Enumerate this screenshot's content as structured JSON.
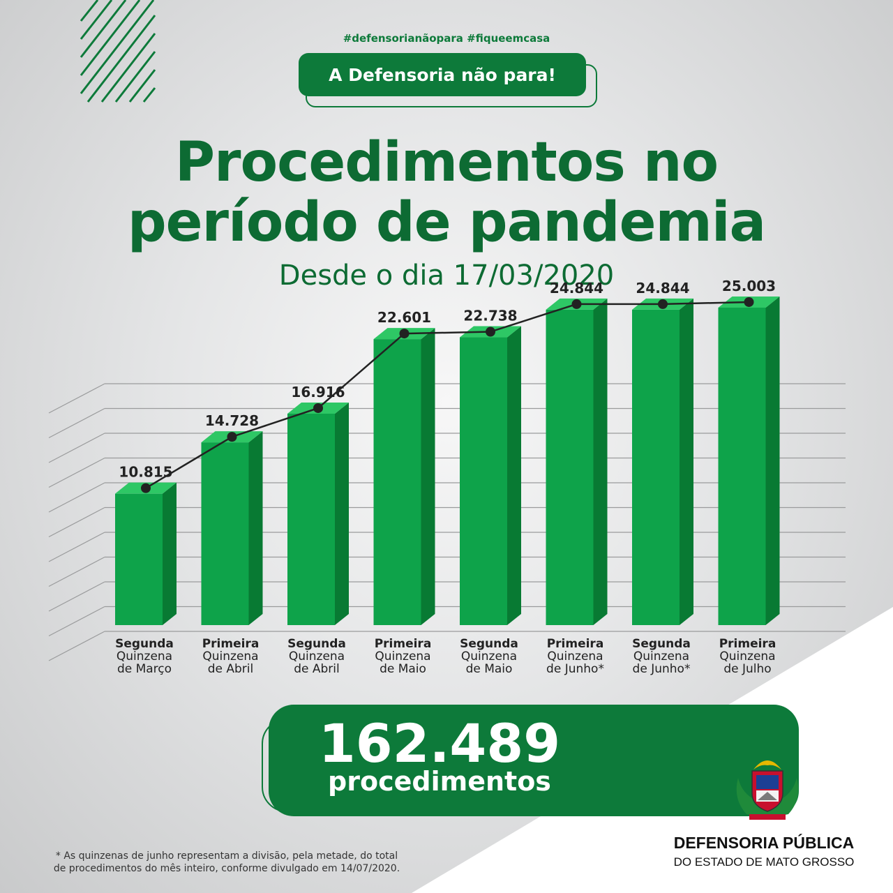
{
  "header": {
    "hashtags": "#defensorianãopara #fiqueemcasa",
    "pill": "A Defensoria não para!",
    "title_line1": "Procedimentos no",
    "title_line2": "período de pandemia",
    "subtitle": "Desde o dia 17/03/2020"
  },
  "chart_data": {
    "type": "bar",
    "categories": [
      [
        "Segunda",
        "Quinzena",
        "de Março"
      ],
      [
        "Primeira",
        "Quinzena",
        "de Abril"
      ],
      [
        "Segunda",
        "Quinzena",
        "de Abril"
      ],
      [
        "Primeira",
        "Quinzena",
        "de Maio"
      ],
      [
        "Segunda",
        "Quinzena",
        "de Maio"
      ],
      [
        "Primeira",
        "Quinzena",
        "de Junho*"
      ],
      [
        "Segunda",
        "Quinzena",
        "de Junho*"
      ],
      [
        "Primeira",
        "Quinzena",
        "de Julho"
      ]
    ],
    "values": [
      10815,
      14728,
      16916,
      22601,
      22738,
      24844,
      24844,
      25003
    ],
    "value_labels": [
      "10.815",
      "14.728",
      "16.916",
      "22.601",
      "22.738",
      "24.844",
      "24.844",
      "25.003"
    ],
    "grid": true,
    "line_overlay": true,
    "colors": {
      "bar_front": "#0ea34a",
      "bar_side": "#087a33",
      "bar_top": "#2ec765",
      "line": "#222222"
    }
  },
  "total": {
    "value": "162.489",
    "label": "procedimentos"
  },
  "footnote": {
    "line1": "* As quinzenas de junho representam a divisão, pela metade, do total",
    "line2": "de procedimentos do mês inteiro, conforme divulgado em 14/07/2020."
  },
  "org": {
    "name": "DEFENSORIA PÚBLICA",
    "sub": "DO ESTADO DE MATO GROSSO"
  },
  "colors": {
    "primary_green": "#0d7a3a",
    "dark_green": "#0d6b33"
  }
}
